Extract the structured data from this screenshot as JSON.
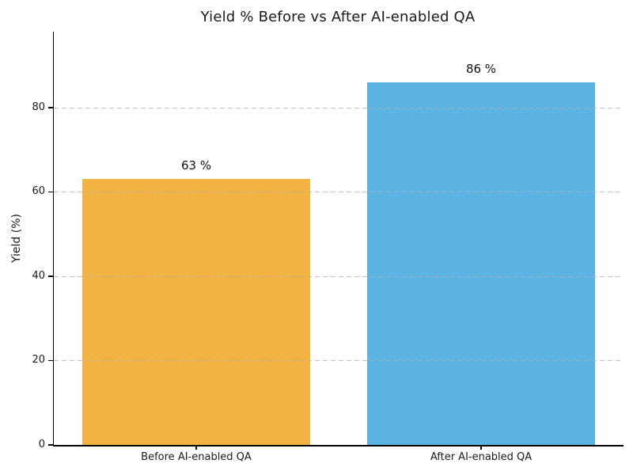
{
  "chart_data": {
    "type": "bar",
    "title": "Yield % Before vs After AI-enabled QA",
    "ylabel": "Yield (%)",
    "xlabel": "",
    "categories": [
      "Before AI-enabled QA",
      "After AI-enabled QA"
    ],
    "values": [
      63,
      86
    ],
    "value_labels": [
      "63 %",
      "86 %"
    ],
    "bar_colors": [
      "#F2B342",
      "#5AB3E0"
    ],
    "yticks": [
      0,
      20,
      40,
      60,
      80
    ],
    "ylim": [
      0,
      98
    ],
    "bar_width_fraction": 0.8,
    "grid": {
      "axis": "y",
      "style": "dashed",
      "color": "#b0b0b0"
    },
    "legend_position": "none",
    "background_color": "#ffffff",
    "text_color": "#1a1a1a"
  }
}
